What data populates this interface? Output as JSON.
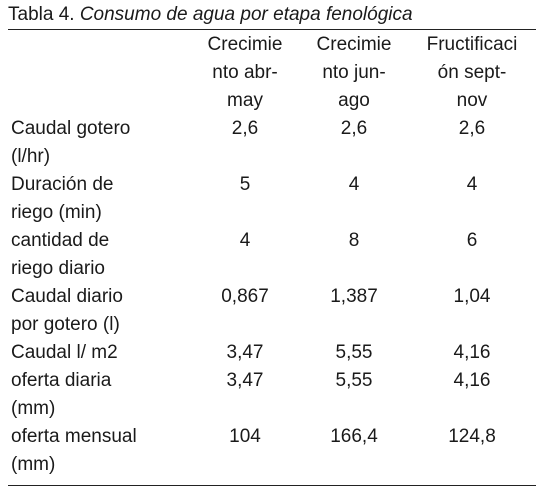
{
  "caption": {
    "prefix": "Tabla 4.",
    "title": "Consumo de agua por etapa fenológica"
  },
  "columns": [
    {
      "lines": [
        "Crecimie",
        "nto abr-",
        "may"
      ]
    },
    {
      "lines": [
        "Crecimie",
        "nto jun-",
        "ago"
      ]
    },
    {
      "lines": [
        "Fructificaci",
        "ón sept-",
        "nov"
      ]
    }
  ],
  "rows": [
    {
      "label": [
        "Caudal gotero",
        "(l/hr)"
      ],
      "values": [
        "2,6",
        "2,6",
        "2,6"
      ]
    },
    {
      "label": [
        "Duración de",
        "riego (min)"
      ],
      "values": [
        "5",
        "4",
        "4"
      ]
    },
    {
      "label": [
        "cantidad de",
        "riego diario"
      ],
      "values": [
        "4",
        "8",
        "6"
      ]
    },
    {
      "label": [
        "Caudal diario",
        "por gotero (l)"
      ],
      "values": [
        "0,867",
        "1,387",
        "1,04"
      ]
    },
    {
      "label": [
        "Caudal l/ m2"
      ],
      "values": [
        "3,47",
        "5,55",
        "4,16"
      ]
    },
    {
      "label": [
        "oferta diaria",
        "(mm)"
      ],
      "values": [
        "3,47",
        "5,55",
        "4,16"
      ]
    },
    {
      "label": [
        "oferta mensual",
        "(mm)"
      ],
      "values": [
        "104",
        "166,4",
        "124,8"
      ]
    }
  ]
}
